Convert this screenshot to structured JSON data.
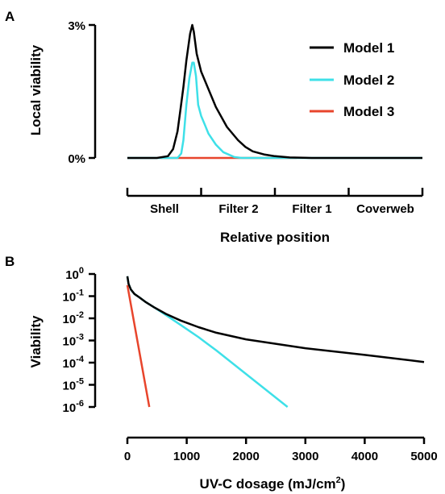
{
  "chart_data": [
    {
      "panel": "A",
      "type": "line",
      "ylabel": "Local viability",
      "xlabel": "Relative position",
      "y_ticks": [
        "0%",
        "3%"
      ],
      "ylim": [
        0,
        3
      ],
      "x_regions": [
        "Shell",
        "Filter 2",
        "Filter 1",
        "Coverweb"
      ],
      "xlim": [
        0,
        4
      ],
      "legend": {
        "placement": "top-right",
        "entries": [
          "Model 1",
          "Model 2",
          "Model 3"
        ]
      },
      "series": [
        {
          "name": "Model 1",
          "color": "#000000",
          "x": [
            0.0,
            0.4,
            0.55,
            0.62,
            0.68,
            0.72,
            0.76,
            0.8,
            0.85,
            0.88,
            0.9,
            0.94,
            1.0,
            1.1,
            1.2,
            1.35,
            1.5,
            1.6,
            1.7,
            1.85,
            2.0,
            2.2,
            2.5,
            3.0,
            4.0
          ],
          "y": [
            0.0,
            0.0,
            0.04,
            0.2,
            0.6,
            1.1,
            1.6,
            2.2,
            2.8,
            3.0,
            2.85,
            2.35,
            1.95,
            1.55,
            1.15,
            0.7,
            0.4,
            0.25,
            0.15,
            0.08,
            0.04,
            0.01,
            0.0,
            0.0,
            0.0
          ]
        },
        {
          "name": "Model 2",
          "color": "#3ee0e8",
          "x": [
            0.0,
            0.68,
            0.73,
            0.76,
            0.8,
            0.84,
            0.88,
            0.9,
            0.93,
            0.96,
            1.0,
            1.05,
            1.1,
            1.2,
            1.3,
            1.45,
            1.55,
            4.0
          ],
          "y": [
            0.0,
            0.0,
            0.1,
            0.4,
            1.2,
            1.8,
            2.15,
            2.15,
            1.85,
            1.2,
            0.95,
            0.75,
            0.55,
            0.3,
            0.13,
            0.02,
            0.0,
            0.0
          ]
        },
        {
          "name": "Model 3",
          "color": "#e8452c",
          "x": [
            0.45,
            2.3
          ],
          "y": [
            0.0,
            0.0
          ]
        }
      ]
    },
    {
      "panel": "B",
      "type": "line",
      "ylabel": "Viability",
      "xlabel": "UV-C dosage (mJ/cm",
      "xlabel_sup": "2",
      "xlabel_end": ")",
      "x_ticks": [
        0,
        1000,
        2000,
        3000,
        4000,
        5000
      ],
      "xlim": [
        0,
        5000
      ],
      "y_log": true,
      "y_tick_bases": [
        "10",
        "10",
        "10",
        "10",
        "10",
        "10",
        "10"
      ],
      "y_tick_exps": [
        "0",
        "-1",
        "-2",
        "-3",
        "-4",
        "-5",
        "-6"
      ],
      "ylim_log10": [
        -6,
        0
      ],
      "series": [
        {
          "name": "Model 1",
          "color": "#000000",
          "x": [
            0,
            20,
            60,
            120,
            200,
            300,
            450,
            650,
            900,
            1200,
            1500,
            2000,
            3000,
            4000,
            5000
          ],
          "log10_y": [
            -0.1,
            -0.45,
            -0.7,
            -0.9,
            -1.05,
            -1.25,
            -1.5,
            -1.8,
            -2.1,
            -2.4,
            -2.65,
            -2.95,
            -3.35,
            -3.65,
            -3.97
          ]
        },
        {
          "name": "Model 2",
          "color": "#3ee0e8",
          "x": [
            0,
            20,
            60,
            120,
            200,
            300,
            450,
            650,
            900,
            1200,
            1500,
            2700
          ],
          "log10_y": [
            -0.1,
            -0.45,
            -0.7,
            -0.9,
            -1.05,
            -1.25,
            -1.5,
            -1.85,
            -2.3,
            -2.85,
            -3.45,
            -6.0
          ]
        },
        {
          "name": "Model 3",
          "color": "#e8452c",
          "x": [
            0,
            370
          ],
          "log10_y": [
            -0.5,
            -6.0
          ]
        }
      ]
    }
  ]
}
